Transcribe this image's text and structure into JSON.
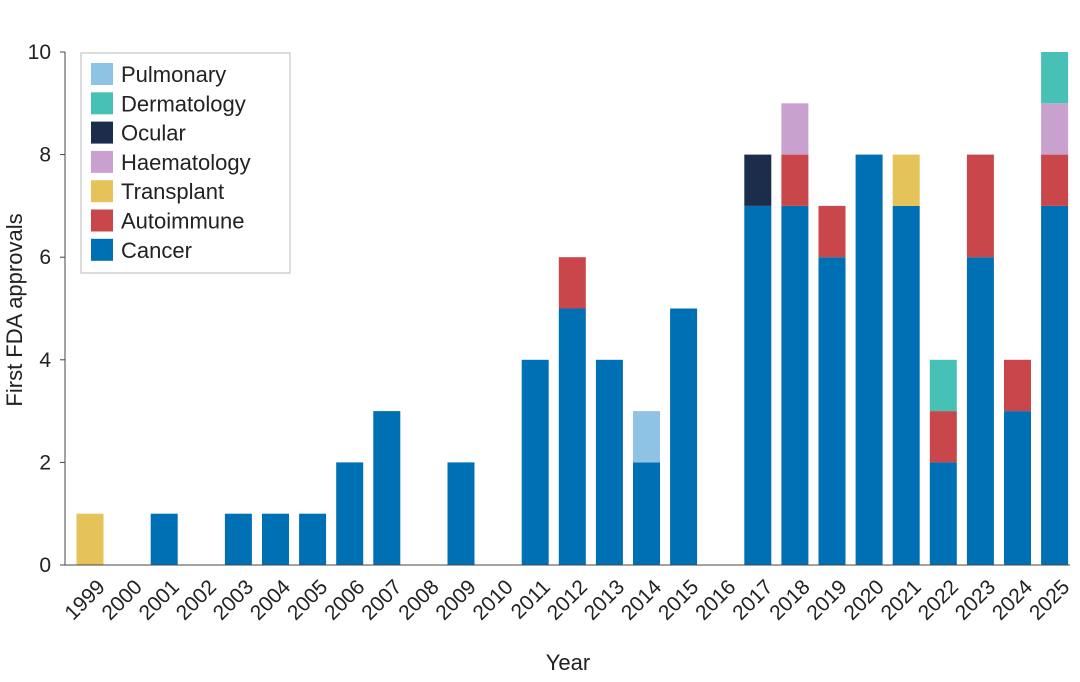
{
  "chart_data": {
    "type": "bar",
    "stacked": true,
    "xlabel": "Year",
    "ylabel": "First FDA approvals",
    "ylim": [
      0,
      10
    ],
    "yticks": [
      0,
      2,
      4,
      6,
      8,
      10
    ],
    "grid": false,
    "legend_position": "top-left",
    "categories": [
      "1999",
      "2000",
      "2001",
      "2002",
      "2003",
      "2004",
      "2005",
      "2006",
      "2007",
      "2008",
      "2009",
      "2010",
      "2011",
      "2012",
      "2013",
      "2014",
      "2015",
      "2016",
      "2017",
      "2018",
      "2019",
      "2020",
      "2021",
      "2022",
      "2023",
      "2024",
      "2025"
    ],
    "series": [
      {
        "name": "Cancer",
        "color": "#0070b4",
        "values": [
          0,
          0,
          1,
          0,
          1,
          1,
          1,
          2,
          3,
          0,
          2,
          0,
          4,
          5,
          4,
          2,
          5,
          0,
          7,
          7,
          6,
          8,
          7,
          2,
          6,
          3,
          7
        ]
      },
      {
        "name": "Autoimmune",
        "color": "#c9464a",
        "values": [
          0,
          0,
          0,
          0,
          0,
          0,
          0,
          0,
          0,
          0,
          0,
          0,
          0,
          1,
          0,
          0,
          0,
          0,
          0,
          1,
          1,
          0,
          0,
          1,
          2,
          1,
          1
        ]
      },
      {
        "name": "Transplant",
        "color": "#e6c358",
        "values": [
          1,
          0,
          0,
          0,
          0,
          0,
          0,
          0,
          0,
          0,
          0,
          0,
          0,
          0,
          0,
          0,
          0,
          0,
          0,
          0,
          0,
          0,
          1,
          0,
          0,
          0,
          0
        ]
      },
      {
        "name": "Haematology",
        "color": "#c9a1cf",
        "values": [
          0,
          0,
          0,
          0,
          0,
          0,
          0,
          0,
          0,
          0,
          0,
          0,
          0,
          0,
          0,
          0,
          0,
          0,
          0,
          1,
          0,
          0,
          0,
          0,
          0,
          0,
          1
        ]
      },
      {
        "name": "Ocular",
        "color": "#1b2d4b",
        "values": [
          0,
          0,
          0,
          0,
          0,
          0,
          0,
          0,
          0,
          0,
          0,
          0,
          0,
          0,
          0,
          0,
          0,
          0,
          1,
          0,
          0,
          0,
          0,
          0,
          0,
          0,
          0
        ]
      },
      {
        "name": "Dermatology",
        "color": "#47c1b6",
        "values": [
          0,
          0,
          0,
          0,
          0,
          0,
          0,
          0,
          0,
          0,
          0,
          0,
          0,
          0,
          0,
          0,
          0,
          0,
          0,
          0,
          0,
          0,
          0,
          1,
          0,
          0,
          1
        ]
      },
      {
        "name": "Pulmonary",
        "color": "#8ec3e6",
        "values": [
          0,
          0,
          0,
          0,
          0,
          0,
          0,
          0,
          0,
          0,
          0,
          0,
          0,
          0,
          0,
          1,
          0,
          0,
          0,
          0,
          0,
          0,
          0,
          0,
          0,
          0,
          0
        ]
      }
    ],
    "legend_order": [
      "Pulmonary",
      "Dermatology",
      "Ocular",
      "Haematology",
      "Transplant",
      "Autoimmune",
      "Cancer"
    ]
  }
}
